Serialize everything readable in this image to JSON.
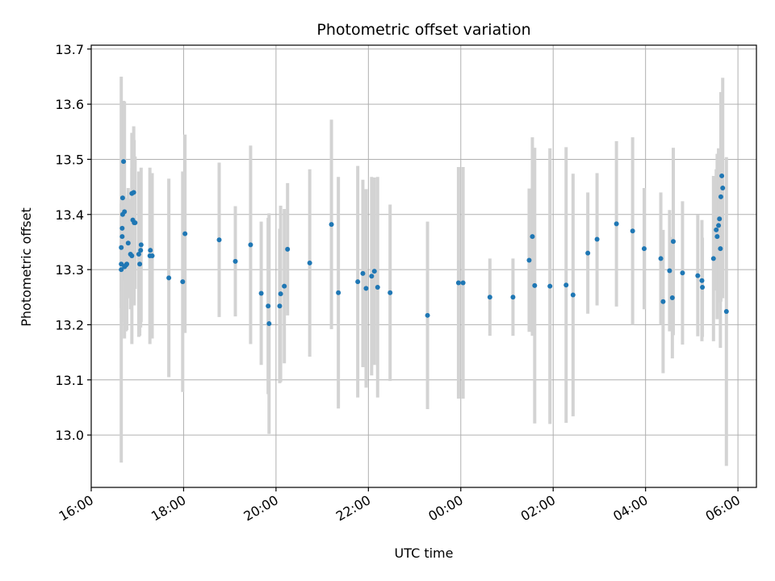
{
  "chart_data": {
    "type": "scatter",
    "title": "Photometric offset variation",
    "xlabel": "UTC time",
    "ylabel": "Photometric offset",
    "grid": true,
    "x_tick_labels": [
      "16:00",
      "18:00",
      "20:00",
      "22:00",
      "00:00",
      "02:00",
      "04:00",
      "06:00"
    ],
    "y_tick_labels": [
      "13.0",
      "13.1",
      "13.2",
      "13.3",
      "13.4",
      "13.5",
      "13.6",
      "13.7"
    ],
    "x_ticks_hours": [
      16,
      18,
      20,
      22,
      24,
      26,
      28,
      30
    ],
    "y_ticks": [
      13.0,
      13.1,
      13.2,
      13.3,
      13.4,
      13.5,
      13.6,
      13.7
    ],
    "xlim_hours": [
      16,
      30.4
    ],
    "ylim": [
      12.905,
      13.707
    ],
    "colors": {
      "marker": "#1f77b4",
      "errorbar": "#d3d3d3",
      "grid": "#b0b0b0"
    },
    "series": [
      {
        "x_hours": [
          16.65,
          16.65,
          16.65,
          16.67,
          16.67,
          16.68,
          16.68,
          16.7,
          16.72,
          16.72,
          16.75,
          16.77,
          16.8,
          16.85,
          16.88,
          16.88,
          16.9,
          16.92,
          16.93,
          16.95,
          17.03,
          17.05,
          17.07,
          17.08,
          17.27,
          17.28,
          17.32,
          17.68,
          17.98,
          18.03,
          18.77,
          19.12,
          19.45,
          19.68,
          19.83,
          19.85,
          20.08,
          20.1,
          20.18,
          20.25,
          20.73,
          21.2,
          21.35,
          21.77,
          21.88,
          21.95,
          22.07,
          22.13,
          22.2,
          22.47,
          23.28,
          23.95,
          24.05,
          24.63,
          25.13,
          25.48,
          25.55,
          25.6,
          25.93,
          26.28,
          26.43,
          26.75,
          26.95,
          27.37,
          27.72,
          27.97,
          28.33,
          28.38,
          28.52,
          28.58,
          28.6,
          28.8,
          29.13,
          29.22,
          29.23,
          29.47,
          29.53,
          29.55,
          29.58,
          29.6,
          29.62,
          29.63,
          29.65,
          29.67,
          29.75
        ],
        "y": [
          13.3,
          13.31,
          13.34,
          13.36,
          13.375,
          13.4,
          13.43,
          13.496,
          13.405,
          13.305,
          13.308,
          13.31,
          13.348,
          13.328,
          13.325,
          13.438,
          13.39,
          13.44,
          13.385,
          13.385,
          13.328,
          13.31,
          13.335,
          13.345,
          13.325,
          13.335,
          13.325,
          13.285,
          13.278,
          13.365,
          13.354,
          13.315,
          13.345,
          13.257,
          13.234,
          13.202,
          13.234,
          13.256,
          13.27,
          13.337,
          13.312,
          13.382,
          13.258,
          13.278,
          13.293,
          13.266,
          13.288,
          13.297,
          13.268,
          13.258,
          13.217,
          13.276,
          13.276,
          13.25,
          13.25,
          13.317,
          13.36,
          13.271,
          13.27,
          13.272,
          13.254,
          13.33,
          13.355,
          13.383,
          13.37,
          13.338,
          13.32,
          13.242,
          13.298,
          13.249,
          13.351,
          13.294,
          13.289,
          13.28,
          13.268,
          13.32,
          13.372,
          13.36,
          13.38,
          13.392,
          13.338,
          13.432,
          13.47,
          13.448,
          13.224
        ],
        "yerr": [
          0.35,
          0.08,
          0.08,
          0.08,
          0.08,
          0.12,
          0.1,
          0.11,
          0.2,
          0.13,
          0.12,
          0.12,
          0.1,
          0.1,
          0.16,
          0.11,
          0.12,
          0.12,
          0.15,
          0.12,
          0.15,
          0.13,
          0.14,
          0.14,
          0.16,
          0.14,
          0.15,
          0.18,
          0.2,
          0.18,
          0.14,
          0.1,
          0.18,
          0.13,
          0.16,
          0.2,
          0.14,
          0.16,
          0.14,
          0.12,
          0.17,
          0.19,
          0.21,
          0.21,
          0.17,
          0.18,
          0.18,
          0.17,
          0.2,
          0.16,
          0.17,
          0.21,
          0.21,
          0.07,
          0.07,
          0.13,
          0.18,
          0.25,
          0.25,
          0.25,
          0.22,
          0.11,
          0.12,
          0.15,
          0.17,
          0.11,
          0.12,
          0.13,
          0.11,
          0.11,
          0.17,
          0.13,
          0.11,
          0.11,
          0.09,
          0.15,
          0.11,
          0.15,
          0.14,
          0.11,
          0.18,
          0.19,
          0.14,
          0.2,
          0.28
        ]
      }
    ]
  }
}
